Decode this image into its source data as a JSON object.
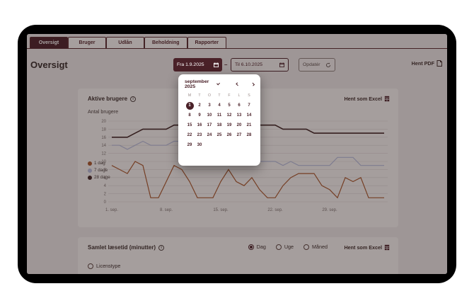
{
  "tabs": [
    {
      "label": "Oversigt",
      "active": true
    },
    {
      "label": "Bruger",
      "active": false
    },
    {
      "label": "Udlån",
      "active": false
    },
    {
      "label": "Beholdning",
      "active": false
    },
    {
      "label": "Rapporter",
      "active": false
    }
  ],
  "page": {
    "title": "Oversigt",
    "download_pdf_label": "Hent PDF"
  },
  "date_range": {
    "from_label": "Fra 1.9.2025",
    "separator": "–",
    "to_label": "Til 6.10.2025",
    "update_label": "Opdatér"
  },
  "calendar": {
    "month_label": "september 2025",
    "weekdays": [
      "M",
      "T",
      "O",
      "T",
      "F",
      "L",
      "S"
    ],
    "days_in_month": 30,
    "selected_day": 1
  },
  "active_users_panel": {
    "title": "Aktive brugere",
    "y_axis_title": "Antal brugere",
    "excel_label": "Hent som Excel"
  },
  "chart_data": {
    "type": "line",
    "title": "Aktive brugere",
    "ylabel": "Antal brugere",
    "ylim": [
      0,
      20
    ],
    "y_tick_step": 2,
    "grid": true,
    "legend_position": "left",
    "x_tick_labels": [
      "1. sep.",
      "8. sep.",
      "15. sep.",
      "22. sep.",
      "29. sep."
    ],
    "x_tick_indices": [
      0,
      7,
      14,
      21,
      28
    ],
    "x_range": "1.9.2025 – 6.10.2025",
    "series": [
      {
        "name": "1 dag",
        "color": "#a8582c",
        "values": [
          9,
          8,
          7,
          10,
          9,
          1,
          1,
          5,
          9,
          8,
          5,
          1,
          1,
          1,
          5,
          8,
          5,
          4,
          6,
          3,
          1,
          1,
          4,
          6,
          7,
          7,
          7,
          4,
          3,
          1,
          6,
          5,
          6,
          1,
          1,
          1
        ]
      },
      {
        "name": "7 dage",
        "color": "#b7bede",
        "values": [
          14,
          14,
          13,
          14,
          15,
          14,
          14,
          14,
          15,
          15,
          14,
          13,
          12,
          11,
          10,
          10,
          10,
          10,
          10,
          10,
          10,
          10,
          9,
          10,
          9,
          9,
          9,
          9,
          9,
          11,
          11,
          11,
          9,
          9,
          9,
          9
        ]
      },
      {
        "name": "28 dage",
        "color": "#3f2424",
        "values": [
          16,
          16,
          16,
          17,
          18,
          18,
          18,
          18,
          19,
          19,
          19,
          19,
          19,
          19,
          19,
          19,
          19,
          19,
          19,
          19,
          19,
          19,
          18,
          18,
          18,
          18,
          17,
          17,
          17,
          17,
          17,
          17,
          17,
          17,
          17,
          17
        ]
      }
    ]
  },
  "reading_time_panel": {
    "title": "Samlet læsetid (minutter)",
    "options": [
      {
        "label": "Dag",
        "selected": true
      },
      {
        "label": "Uge",
        "selected": false
      },
      {
        "label": "Måned",
        "selected": false
      }
    ],
    "excel_label": "Hent som Excel",
    "filter_label": "Licenstype"
  },
  "colors": {
    "brand_maroon": "#4a2128",
    "series_1_day": "#a8582c",
    "series_7_days": "#b7bede",
    "series_28_days": "#3f2424",
    "panel_bg": "#f9f7f6"
  }
}
